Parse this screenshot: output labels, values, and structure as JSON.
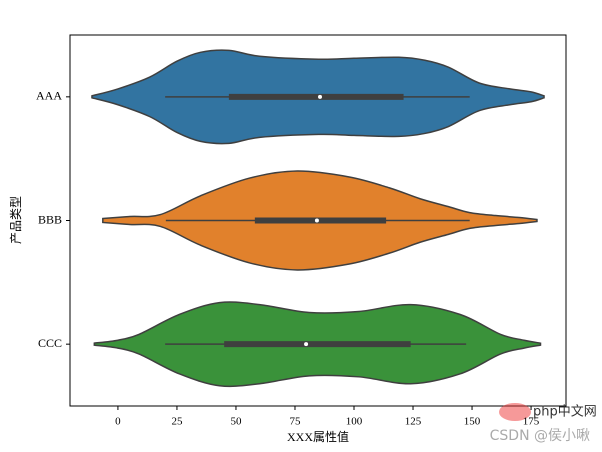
{
  "chart_data": {
    "type": "violin",
    "xlabel": "XXX属性值",
    "ylabel": "产品类型",
    "categories": [
      "AAA",
      "BBB",
      "CCC"
    ],
    "colors": [
      "#3274a1",
      "#e1812c",
      "#3a923a"
    ],
    "xlim": [
      -20.3,
      189.8
    ],
    "xticks": [
      0,
      25,
      50,
      75,
      100,
      125,
      150,
      175
    ],
    "stats": [
      {
        "min": 20,
        "q1": 47,
        "median": 85.6,
        "q3": 121,
        "max": 149,
        "kde_x": [
          -11,
          0,
          13.5,
          25,
          35,
          47,
          60,
          85,
          100,
          119,
          130,
          140,
          153,
          166,
          175,
          180.5
        ],
        "kde_density": [
          0.02,
          0.16,
          0.4,
          0.72,
          0.9,
          0.94,
          0.82,
          0.76,
          0.78,
          0.8,
          0.74,
          0.6,
          0.28,
          0.16,
          0.1,
          0.02
        ]
      },
      {
        "min": 20.3,
        "q1": 58,
        "median": 84.3,
        "q3": 113.6,
        "max": 149,
        "kde_x": [
          -6.4,
          5,
          18,
          35,
          56,
          76,
          98,
          115,
          128,
          140,
          149,
          160,
          170,
          177.5
        ],
        "kde_density": [
          0.04,
          0.08,
          0.12,
          0.5,
          0.86,
          1.0,
          0.88,
          0.66,
          0.44,
          0.28,
          0.16,
          0.1,
          0.06,
          0.02
        ]
      },
      {
        "min": 20,
        "q1": 45,
        "median": 79.7,
        "q3": 124,
        "max": 147.5,
        "kde_x": [
          -10,
          0,
          9,
          26,
          43,
          60,
          81,
          102,
          124,
          145,
          162,
          172,
          179
        ],
        "kde_density": [
          0.02,
          0.08,
          0.2,
          0.6,
          0.84,
          0.8,
          0.64,
          0.66,
          0.8,
          0.6,
          0.2,
          0.08,
          0.02
        ]
      }
    ]
  },
  "watermark": {
    "site": "php中文网",
    "author": "CSDN @侯小啾"
  }
}
